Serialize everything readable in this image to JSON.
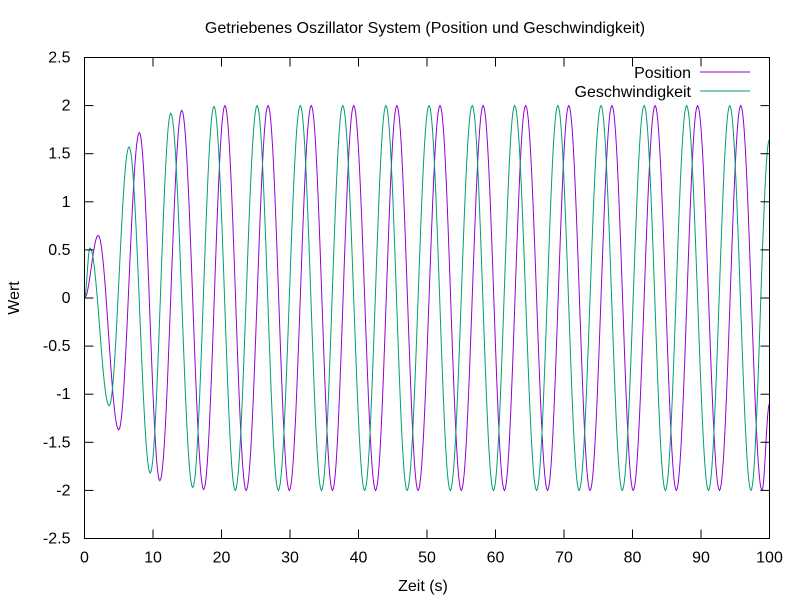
{
  "chart_data": {
    "type": "line",
    "title": "Getriebenes Oszillator System (Position und Geschwindigkeit)",
    "xlabel": "Zeit (s)",
    "ylabel": "Wert",
    "xlim": [
      0,
      100
    ],
    "ylim": [
      -2.5,
      2.5
    ],
    "x_ticks": [
      "0",
      "10",
      "20",
      "30",
      "40",
      "50",
      "60",
      "70",
      "80",
      "90",
      "100"
    ],
    "y_ticks": [
      "2.5",
      "2",
      "1.5",
      "1",
      "0.5",
      "0",
      "-0.5",
      "-1",
      "-1.5",
      "-2",
      "-2.5"
    ],
    "grid": false,
    "legend_position": "top-right",
    "series": [
      {
        "name": "Position",
        "color": "#9400d3",
        "x": [
          0,
          2.0,
          5.0,
          8.0,
          11.0,
          14.2,
          17.4,
          20.5,
          23.6,
          26.8,
          29.9,
          33.1,
          36.2,
          39.3,
          42.5,
          45.6,
          48.7,
          51.9,
          55.0,
          58.2,
          61.3,
          64.4,
          67.6,
          70.7,
          73.8,
          77.0,
          80.1,
          83.3,
          86.4,
          89.5,
          92.7,
          95.8,
          98.9,
          100
        ],
        "values": [
          0,
          0.65,
          -1.37,
          1.72,
          -1.9,
          1.95,
          -1.99,
          2.0,
          -2.0,
          2.0,
          -2.0,
          2.0,
          -2.0,
          2.0,
          -2.0,
          2.0,
          -2.0,
          2.0,
          -2.0,
          2.0,
          -2.0,
          2.0,
          -2.0,
          2.0,
          -2.0,
          2.0,
          -2.0,
          2.0,
          -2.0,
          2.0,
          -2.0,
          2.0,
          -2.0,
          -1.1
        ]
      },
      {
        "name": "Geschwindigkeit",
        "color": "#009e73",
        "x": [
          0,
          0.8,
          3.6,
          6.5,
          9.6,
          12.6,
          15.8,
          18.9,
          22.0,
          25.2,
          28.3,
          31.5,
          34.6,
          37.7,
          40.9,
          44.0,
          47.1,
          50.3,
          53.4,
          56.6,
          59.7,
          62.8,
          66.0,
          69.1,
          72.2,
          75.4,
          78.5,
          81.7,
          84.8,
          87.9,
          91.1,
          94.2,
          97.3,
          100
        ],
        "values": [
          0,
          0.52,
          -1.12,
          1.57,
          -1.82,
          1.92,
          -1.97,
          1.99,
          -2.0,
          2.0,
          -2.0,
          2.0,
          -2.0,
          2.0,
          -2.0,
          2.0,
          -2.0,
          2.0,
          -2.0,
          2.0,
          -2.0,
          2.0,
          -2.0,
          2.0,
          -2.0,
          2.0,
          -2.0,
          2.0,
          -2.0,
          2.0,
          -2.0,
          2.0,
          -2.0,
          1.65
        ]
      }
    ]
  }
}
